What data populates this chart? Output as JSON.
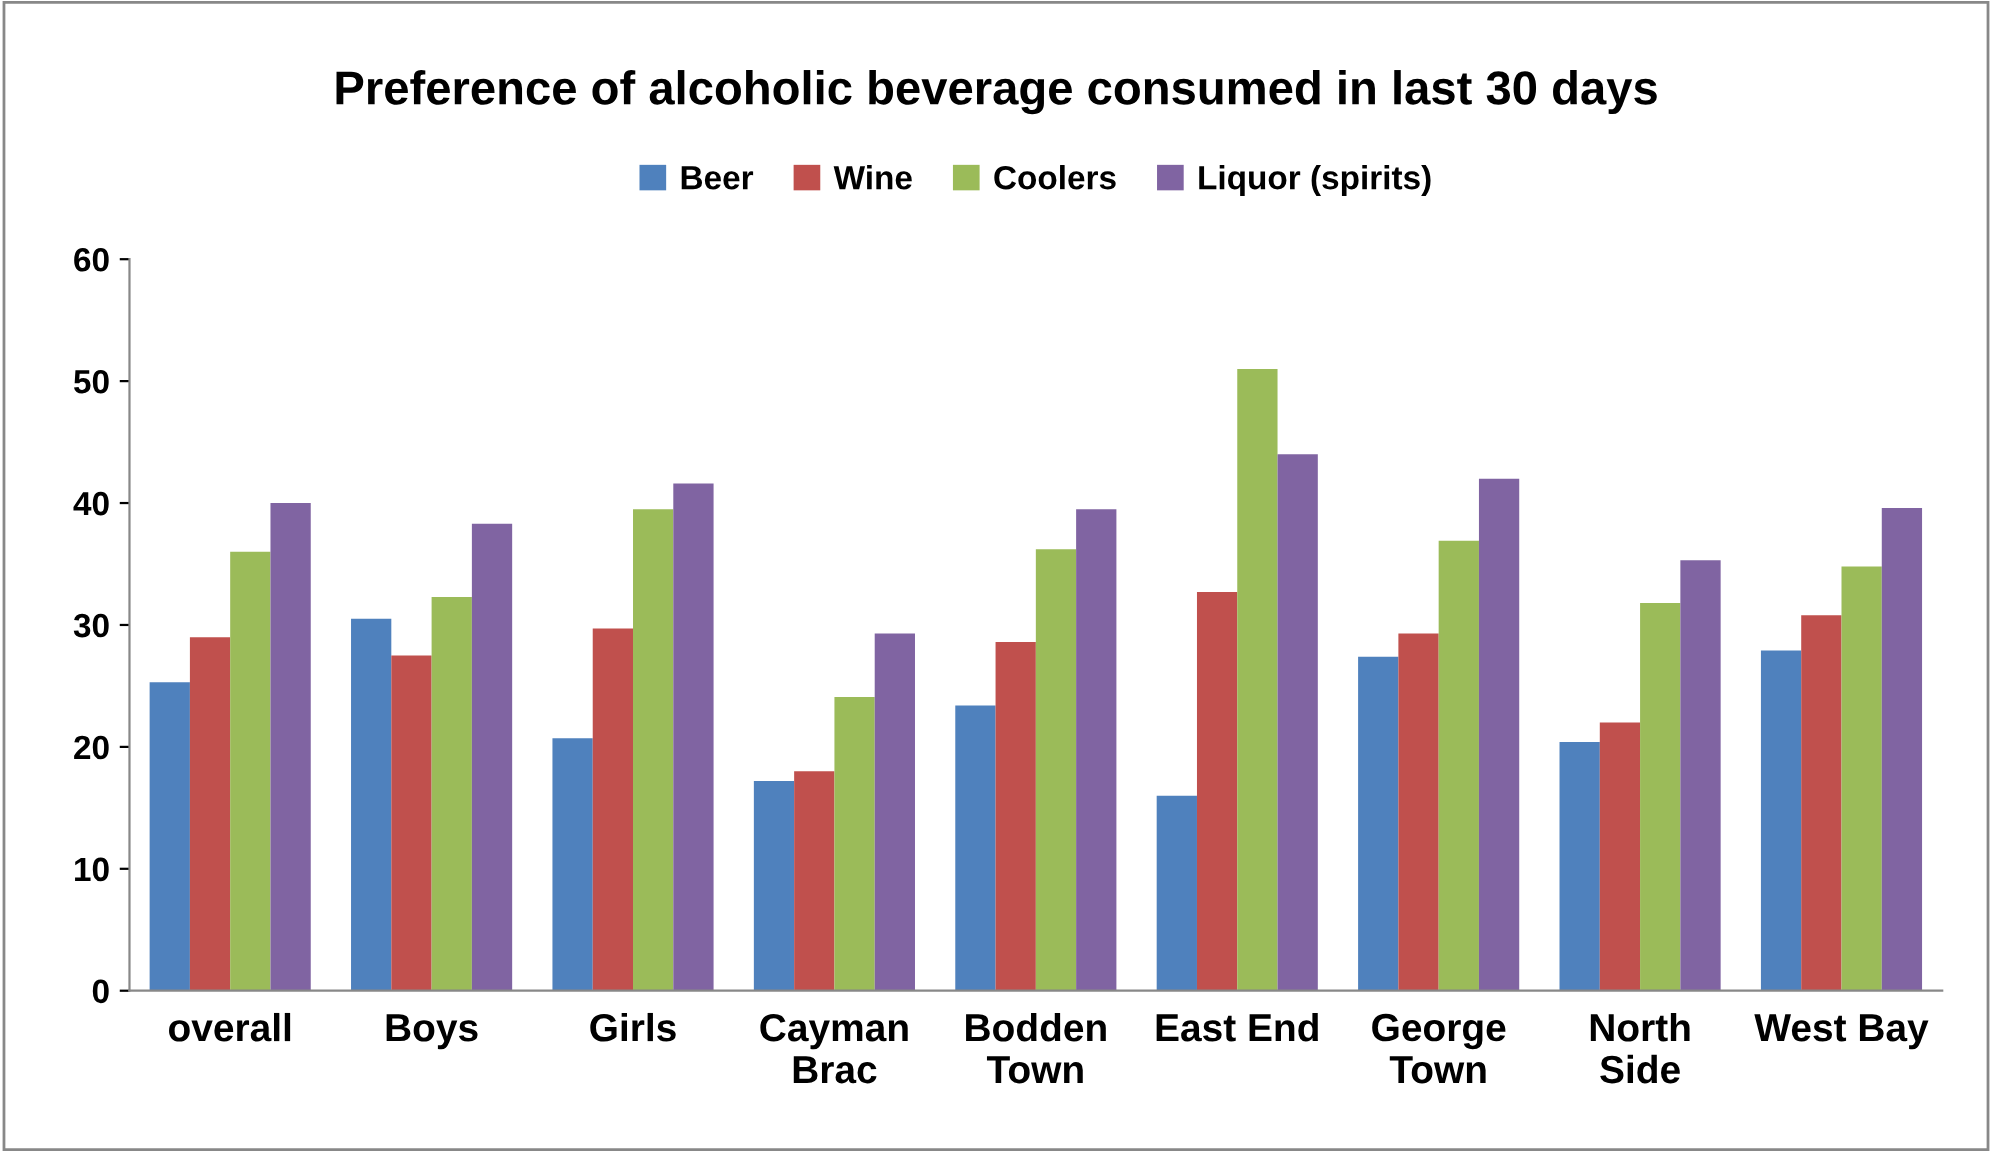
{
  "chart_data": {
    "type": "bar",
    "title": "Preference of alcoholic beverage consumed in last 30 days",
    "categories": [
      "overall",
      "Boys",
      "Girls",
      "Cayman\nBrac",
      "Bodden\nTown",
      "East End",
      "George\nTown",
      "North\nSide",
      "West Bay"
    ],
    "series": [
      {
        "name": "Beer",
        "color": "#4f81bd",
        "values": [
          25.3,
          30.5,
          20.7,
          17.2,
          23.4,
          16,
          27.4,
          20.4,
          27.9
        ]
      },
      {
        "name": "Wine",
        "color": "#c0504d",
        "values": [
          29,
          27.5,
          29.7,
          18,
          28.6,
          32.7,
          29.3,
          22,
          30.8
        ]
      },
      {
        "name": "Coolers",
        "color": "#9bbb59",
        "values": [
          36,
          32.3,
          39.5,
          24.1,
          36.2,
          51,
          36.9,
          31.8,
          34.8
        ]
      },
      {
        "name": "Liquor (spirits)",
        "color": "#8064a2",
        "values": [
          40,
          38.3,
          41.6,
          29.3,
          39.5,
          44,
          42,
          35.3,
          39.6
        ]
      }
    ],
    "ylim": [
      0,
      60
    ],
    "yticks": [
      0,
      10,
      20,
      30,
      40,
      50,
      60
    ],
    "grid": false,
    "legend": "top"
  }
}
